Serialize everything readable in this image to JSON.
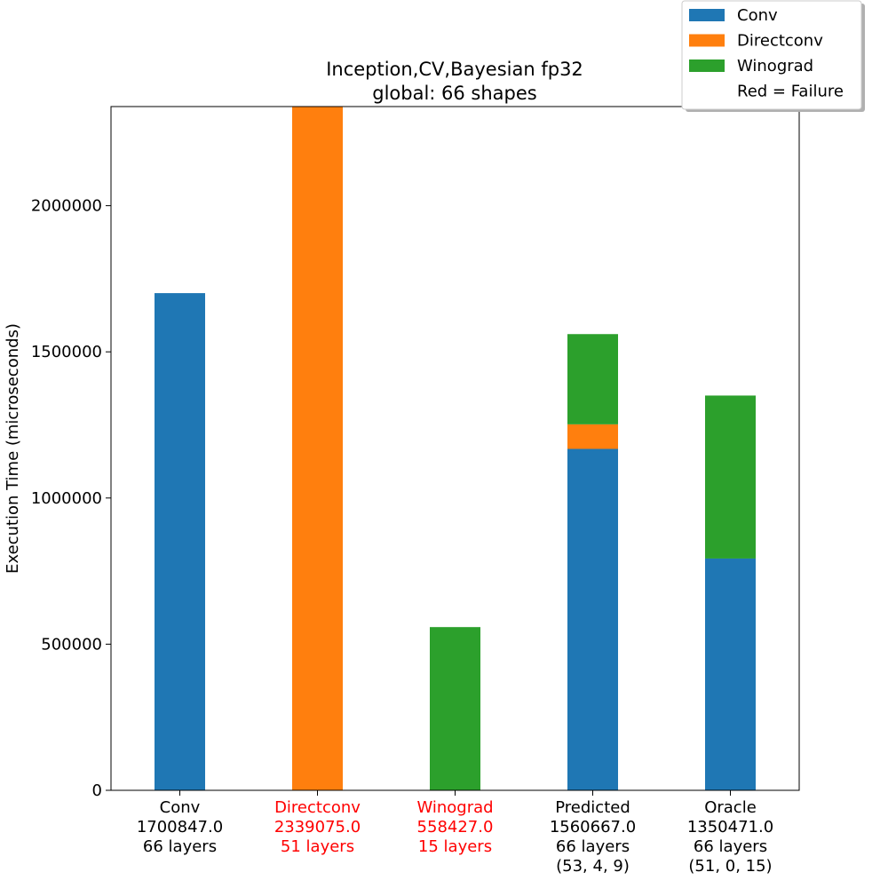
{
  "chart_data": {
    "type": "bar",
    "stacked": true,
    "title": [
      "Inception,CV,Bayesian fp32",
      "global: 66 shapes"
    ],
    "ylabel": "Execution Time (microseconds)",
    "ylim": [
      0,
      2339075
    ],
    "yticks": [
      0,
      500000,
      1000000,
      1500000,
      2000000
    ],
    "ytick_labels": [
      "0",
      "500000",
      "1000000",
      "1500000",
      "2000000"
    ],
    "grid": false,
    "legend_position": "top-right",
    "colors": {
      "Conv": "#1f77b4",
      "Directconv": "#ff7f0e",
      "Winograd": "#2ca02c",
      "failure": "#ff0000",
      "text": "#000000"
    },
    "series": [
      {
        "name": "Conv",
        "values": [
          1700847,
          0,
          0,
          1168000,
          793000
        ]
      },
      {
        "name": "Directconv",
        "values": [
          0,
          2339075,
          0,
          84000,
          0
        ]
      },
      {
        "name": "Winograd",
        "values": [
          0,
          0,
          558427,
          308667,
          557471
        ]
      }
    ],
    "categories": [
      {
        "lines": [
          "Conv",
          "1700847.0",
          "66 layers"
        ],
        "failure": false
      },
      {
        "lines": [
          "Directconv",
          "2339075.0",
          "51 layers"
        ],
        "failure": true
      },
      {
        "lines": [
          "Winograd",
          "558427.0",
          "15 layers"
        ],
        "failure": true
      },
      {
        "lines": [
          "Predicted",
          "1560667.0",
          "66 layers",
          "(53, 4, 9)"
        ],
        "failure": false
      },
      {
        "lines": [
          "Oracle",
          "1350471.0",
          "66 layers",
          "(51, 0, 15)"
        ],
        "failure": false
      }
    ],
    "legend": {
      "entries": [
        "Conv",
        "Directconv",
        "Winograd"
      ],
      "note": "Red = Failure"
    }
  }
}
